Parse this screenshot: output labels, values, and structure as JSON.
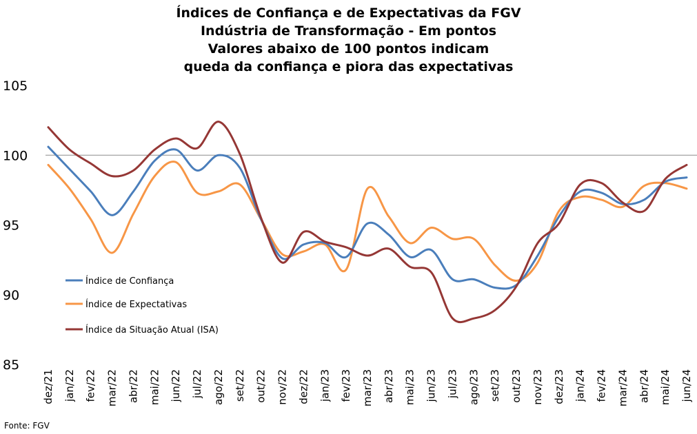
{
  "title_lines": [
    "Índices de Confiança e de Expectativas da FGV",
    "Indústria de Transformação - Em pontos",
    "Valores abaixo de 100 pontos indicam",
    "queda da confiança e piora das expectativas"
  ],
  "source": "Fonte: FGV",
  "chart_data": {
    "type": "line",
    "title": "Índices de Confiança e de Expectativas da FGV Indústria de Transformação - Em pontos Valores abaixo de 100 pontos indicam queda da confiança e piora das expectativas",
    "xlabel": "",
    "ylabel": "",
    "ylim": [
      85,
      105
    ],
    "yticks": [
      85,
      90,
      95,
      100,
      105
    ],
    "reference_line": 100,
    "grid": false,
    "legend_position": "left-middle",
    "categories": [
      "dez/21",
      "jan/22",
      "fev/22",
      "mar/22",
      "abr/22",
      "mai/22",
      "jun/22",
      "jul/22",
      "ago/22",
      "set/22",
      "out/22",
      "nov/22",
      "dez/22",
      "jan/23",
      "fev/23",
      "mar/23",
      "abr/23",
      "mai/23",
      "jun/23",
      "jul/23",
      "ago/23",
      "set/23",
      "out/23",
      "nov/23",
      "dez/23",
      "jan/24",
      "fev/24",
      "mar/24",
      "abr/24",
      "mai/24",
      "jun/24"
    ],
    "series": [
      {
        "name": "Índice de Confiança",
        "color": "#4a7ebb",
        "values": [
          100.6,
          99.0,
          97.4,
          95.7,
          97.4,
          99.6,
          100.4,
          98.9,
          100.0,
          99.1,
          95.4,
          92.6,
          93.6,
          93.7,
          92.7,
          95.1,
          94.3,
          92.7,
          93.2,
          91.1,
          91.1,
          90.5,
          90.7,
          92.8,
          95.6,
          97.4,
          97.3,
          96.5,
          96.8,
          98.1,
          98.4
        ]
      },
      {
        "name": "Índice de Expectativas",
        "color": "#f79646",
        "values": [
          99.3,
          97.6,
          95.4,
          93.0,
          95.8,
          98.5,
          99.5,
          97.3,
          97.4,
          97.9,
          95.4,
          92.9,
          93.1,
          93.6,
          91.8,
          97.6,
          95.6,
          93.7,
          94.8,
          94.0,
          94.0,
          92.1,
          91.0,
          92.3,
          96.0,
          97.0,
          96.8,
          96.3,
          97.8,
          98.0,
          97.6
        ]
      },
      {
        "name": "Índice da Situação Atual (ISA)",
        "color": "#953735",
        "values": [
          102.0,
          100.4,
          99.4,
          98.5,
          98.9,
          100.4,
          101.2,
          100.5,
          102.4,
          100.1,
          95.5,
          92.3,
          94.5,
          93.8,
          93.4,
          92.8,
          93.3,
          92.0,
          91.6,
          88.3,
          88.3,
          88.9,
          90.6,
          93.7,
          95.1,
          97.9,
          98.0,
          96.6,
          96.0,
          98.3,
          99.3
        ]
      }
    ]
  }
}
